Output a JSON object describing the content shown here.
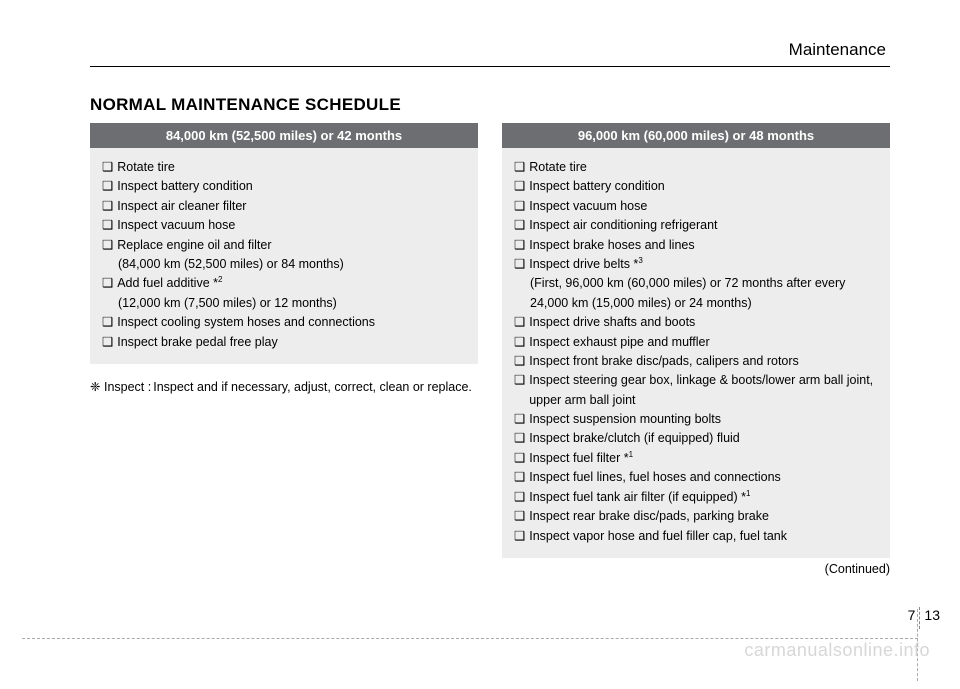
{
  "section": "Maintenance",
  "title": "NORMAL MAINTENANCE SCHEDULE",
  "leftBox": {
    "header": "84,000 km (52,500 miles) or 42 months",
    "items": [
      {
        "text": "Rotate tire"
      },
      {
        "text": "Inspect battery condition"
      },
      {
        "text": "Inspect air cleaner filter"
      },
      {
        "text": "Inspect vacuum hose"
      },
      {
        "text": "Replace engine oil and filter",
        "sub": "(84,000 km (52,500 miles) or 84 months)"
      },
      {
        "text": "Add fuel additive *",
        "sup": "2",
        "sub": "(12,000 km (7,500 miles) or 12 months)"
      },
      {
        "text": "Inspect cooling system hoses and connections"
      },
      {
        "text": "Inspect brake pedal free play"
      }
    ]
  },
  "note": {
    "symbol": "❈",
    "label": "Inspect :",
    "desc": "Inspect and if necessary, adjust, correct, clean or replace."
  },
  "rightBox": {
    "header": "96,000 km (60,000 miles) or 48 months",
    "items": [
      {
        "text": "Rotate tire"
      },
      {
        "text": "Inspect battery condition"
      },
      {
        "text": "Inspect vacuum hose"
      },
      {
        "text": "Inspect air conditioning refrigerant"
      },
      {
        "text": "Inspect brake hoses and lines"
      },
      {
        "text": "Inspect drive belts *",
        "sup": "3",
        "sub": "(First, 96,000 km (60,000 miles) or 72 months after every 24,000 km (15,000 miles) or 24 months)"
      },
      {
        "text": "Inspect drive shafts and boots"
      },
      {
        "text": "Inspect exhaust pipe and muffler"
      },
      {
        "text": "Inspect front brake disc/pads, calipers and rotors"
      },
      {
        "text": "Inspect steering gear box, linkage & boots/lower arm ball joint, upper arm ball joint"
      },
      {
        "text": "Inspect suspension mounting bolts"
      },
      {
        "text": "Inspect brake/clutch (if equipped) fluid"
      },
      {
        "text": "Inspect fuel filter *",
        "sup": "1"
      },
      {
        "text": "Inspect fuel lines, fuel hoses and connections"
      },
      {
        "text": "Inspect fuel tank air filter (if equipped) *",
        "sup": "1"
      },
      {
        "text": "Inspect rear brake disc/pads, parking brake"
      },
      {
        "text": "Inspect vapor hose and fuel filler cap, fuel tank"
      }
    ]
  },
  "continued": "(Continued)",
  "pageChapter": "7",
  "pageNumber": "13",
  "watermark": "carmanualsonline.info"
}
